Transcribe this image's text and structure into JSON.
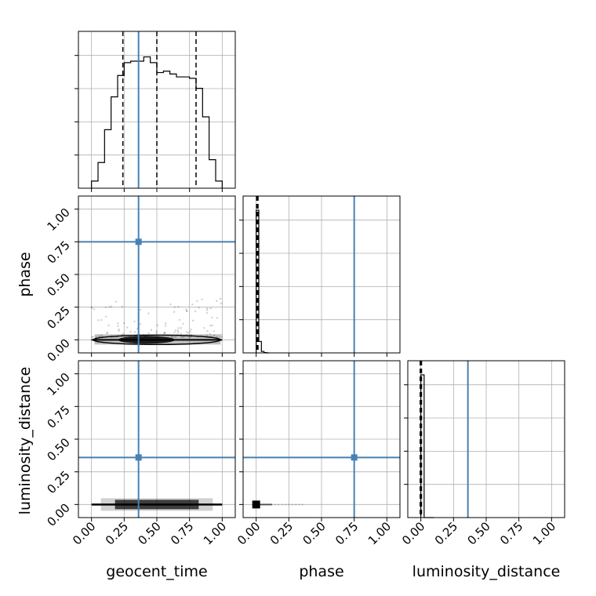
{
  "chart_data": {
    "type": "corner",
    "parameters": [
      "geocent_time",
      "phase",
      "luminosity_distance"
    ],
    "axis_labels": {
      "x": [
        "geocent_time",
        "phase",
        "luminosity_distance"
      ],
      "y": [
        "",
        "phase",
        "luminosity_distance"
      ]
    },
    "tick_values": [
      0.0,
      0.25,
      0.5,
      0.75,
      1.0
    ],
    "tick_labels": [
      "0.00",
      "0.25",
      "0.50",
      "0.75",
      "1.00"
    ],
    "truths": {
      "geocent_time": 0.36,
      "phase": 0.75,
      "luminosity_distance": 0.36
    },
    "truth_color": "#4682b4",
    "grid": true,
    "histograms": [
      {
        "parameter": "geocent_time",
        "bin_edges": [
          0.0,
          0.05,
          0.1,
          0.15,
          0.2,
          0.25,
          0.3,
          0.35,
          0.4,
          0.45,
          0.5,
          0.55,
          0.6,
          0.65,
          0.7,
          0.75,
          0.8,
          0.85,
          0.9,
          0.95,
          1.0
        ],
        "counts": [
          0.05,
          0.18,
          0.41,
          0.64,
          0.79,
          0.88,
          0.89,
          0.89,
          0.92,
          0.88,
          0.81,
          0.82,
          0.8,
          0.78,
          0.78,
          0.77,
          0.7,
          0.5,
          0.2,
          0.05
        ],
        "quantiles": [
          0.24,
          0.5,
          0.8
        ]
      },
      {
        "parameter": "phase",
        "bin_edges": [
          0.0,
          0.02,
          0.04,
          0.06,
          0.08,
          0.1
        ],
        "counts": [
          1.0,
          0.08,
          0.01,
          0.002,
          0.0
        ],
        "quantiles": [
          0.003,
          0.008,
          0.014
        ]
      },
      {
        "parameter": "luminosity_distance",
        "bin_edges": [
          0.0,
          0.025,
          0.05,
          0.075,
          0.1
        ],
        "counts": [
          1.0,
          0.0,
          0.0,
          0.0
        ],
        "quantiles": [
          -0.005,
          0.0,
          0.005
        ]
      }
    ],
    "scatter_panels": [
      {
        "x": "geocent_time",
        "y": "phase",
        "samples_x_range": [
          0.0,
          1.0
        ],
        "samples_y_range": [
          0.0,
          0.37
        ]
      },
      {
        "x": "geocent_time",
        "y": "luminosity_distance",
        "samples_x_range": [
          0.0,
          1.0
        ],
        "samples_y_range": [
          0.0,
          0.0
        ]
      },
      {
        "x": "phase",
        "y": "luminosity_distance",
        "samples_x_range": [
          0.0,
          0.38
        ],
        "samples_y_range": [
          0.0,
          0.0
        ]
      }
    ]
  }
}
